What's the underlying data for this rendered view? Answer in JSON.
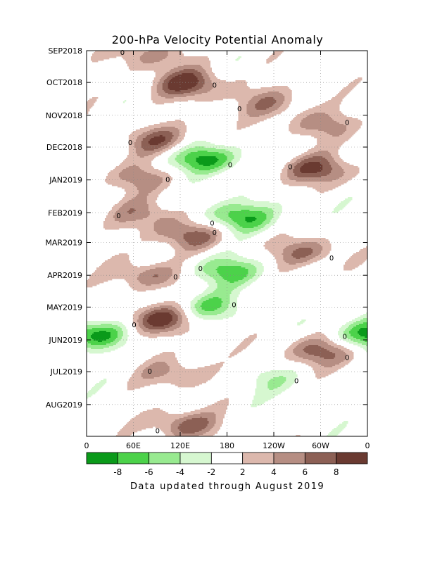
{
  "chart_data": {
    "type": "heatmap",
    "title": "200-hPa Velocity Potential Anomaly",
    "footnote": "Data updated through August 2019",
    "x_axis": {
      "ticks": [
        {
          "lon": 0,
          "label": "0"
        },
        {
          "lon": 60,
          "label": "60E"
        },
        {
          "lon": 120,
          "label": "120E"
        },
        {
          "lon": 180,
          "label": "180"
        },
        {
          "lon": 240,
          "label": "120W"
        },
        {
          "lon": 300,
          "label": "60W"
        },
        {
          "lon": 360,
          "label": "0"
        }
      ],
      "range": [
        0,
        360
      ]
    },
    "y_axis": {
      "ticks": [
        {
          "label": "SEP2018",
          "date": "2018-09-01"
        },
        {
          "label": "OCT2018",
          "date": "2018-10-01"
        },
        {
          "label": "NOV2018",
          "date": "2018-11-01"
        },
        {
          "label": "DEC2018",
          "date": "2018-12-01"
        },
        {
          "label": "JAN2019",
          "date": "2019-01-01"
        },
        {
          "label": "FEB2019",
          "date": "2019-02-01"
        },
        {
          "label": "MAR2019",
          "date": "2019-03-01"
        },
        {
          "label": "APR2019",
          "date": "2019-04-01"
        },
        {
          "label": "MAY2019",
          "date": "2019-05-01"
        },
        {
          "label": "JUN2019",
          "date": "2019-06-01"
        },
        {
          "label": "JUL2019",
          "date": "2019-07-01"
        },
        {
          "label": "AUG2019",
          "date": "2019-08-01"
        }
      ],
      "range": [
        "2018-09-01",
        "2019-08-31"
      ],
      "reversed": true
    },
    "contour_label": "0",
    "colorbar": {
      "ticks": [
        "-8",
        "-6",
        "-4",
        "-2",
        "2",
        "4",
        "6",
        "8"
      ],
      "bins": [
        {
          "max": -8,
          "color": "#0a9a1a"
        },
        {
          "min": -8,
          "max": -6,
          "color": "#4cd24a"
        },
        {
          "min": -6,
          "max": -4,
          "color": "#98ea90"
        },
        {
          "min": -4,
          "max": -2,
          "color": "#d6f7d0"
        },
        {
          "min": -2,
          "max": 2,
          "color": "#ffffff"
        },
        {
          "min": 2,
          "max": 4,
          "color": "#dcb8ad"
        },
        {
          "min": 4,
          "max": 6,
          "color": "#b68e83"
        },
        {
          "min": 6,
          "max": 8,
          "color": "#8c6055"
        },
        {
          "min": 8,
          "color": "#6a3a31"
        }
      ]
    },
    "features": [
      {
        "lon": 80,
        "date": "2018-09-05",
        "value": 5
      },
      {
        "lon": 130,
        "date": "2018-10-02",
        "value": 9
      },
      {
        "lon": 230,
        "date": "2018-10-20",
        "value": 5
      },
      {
        "lon": 300,
        "date": "2018-11-10",
        "value": 5
      },
      {
        "lon": 90,
        "date": "2018-11-25",
        "value": 7
      },
      {
        "lon": 150,
        "date": "2018-12-12",
        "value": -9
      },
      {
        "lon": 295,
        "date": "2018-12-22",
        "value": 8
      },
      {
        "lon": 70,
        "date": "2018-12-30",
        "value": 5
      },
      {
        "lon": 195,
        "date": "2019-02-05",
        "value": -8
      },
      {
        "lon": 130,
        "date": "2019-02-22",
        "value": 7
      },
      {
        "lon": 75,
        "date": "2019-02-02",
        "value": 5
      },
      {
        "lon": 280,
        "date": "2019-03-10",
        "value": 6
      },
      {
        "lon": 180,
        "date": "2019-03-28",
        "value": -7
      },
      {
        "lon": 80,
        "date": "2019-04-01",
        "value": 6
      },
      {
        "lon": 95,
        "date": "2019-05-12",
        "value": 9
      },
      {
        "lon": 155,
        "date": "2019-05-01",
        "value": -6
      },
      {
        "lon": 5,
        "date": "2019-05-27",
        "value": -9
      },
      {
        "lon": 300,
        "date": "2019-06-12",
        "value": 7
      },
      {
        "lon": 115,
        "date": "2019-07-03",
        "value": 5
      },
      {
        "lon": 235,
        "date": "2019-07-08",
        "value": -3
      },
      {
        "lon": 125,
        "date": "2019-08-20",
        "value": 7
      }
    ]
  }
}
